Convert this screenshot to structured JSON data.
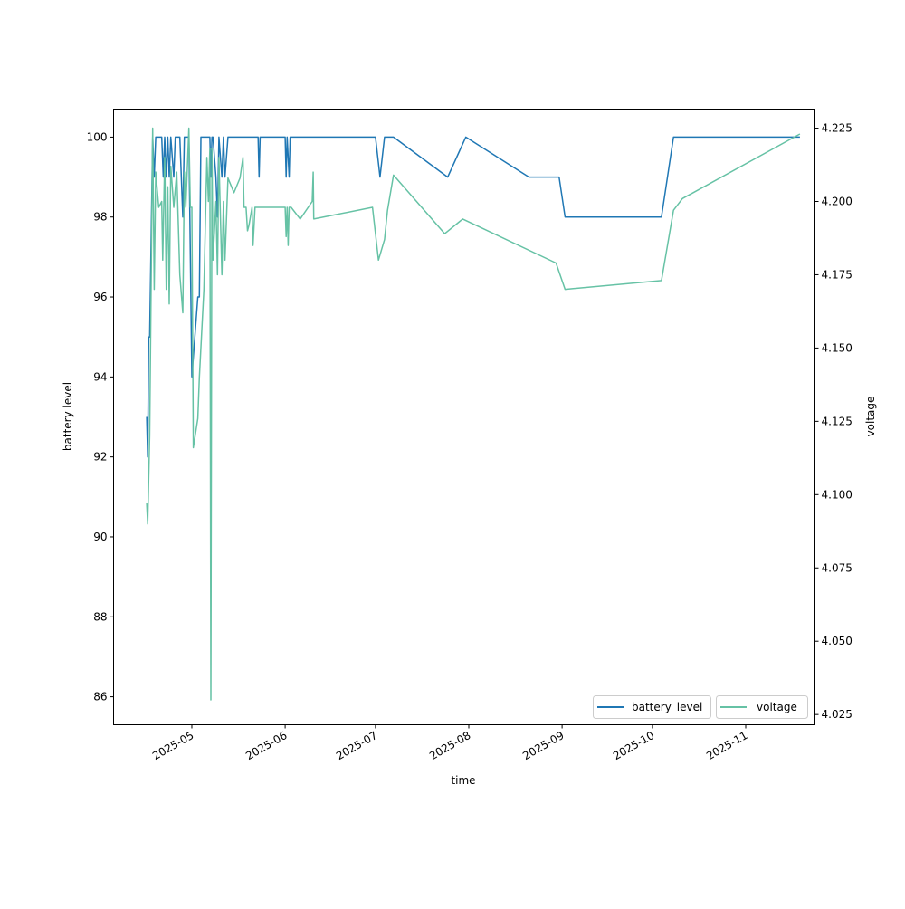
{
  "chart_data": {
    "type": "line",
    "xlabel": "time",
    "ylabel": "battery level",
    "ylabel_right": "voltage",
    "ylim": [
      85.3,
      100.7
    ],
    "ylim_right": [
      4.0215,
      4.2315
    ],
    "xlim": [
      "2025-04-05",
      "2025-11-24"
    ],
    "x_ticks": [
      "2025-05",
      "2025-06",
      "2025-07",
      "2025-08",
      "2025-09",
      "2025-10",
      "2025-11"
    ],
    "y_ticks": [
      "86",
      "88",
      "90",
      "92",
      "94",
      "96",
      "98",
      "100"
    ],
    "y_ticks_right": [
      "4.025",
      "4.050",
      "4.075",
      "4.100",
      "4.125",
      "4.150",
      "4.175",
      "4.200",
      "4.225"
    ],
    "legend": {
      "placement": "lower-right",
      "entries": [
        "battery_level",
        "voltage"
      ]
    },
    "colors": {
      "battery_level": "#1f77b4",
      "voltage": "#66c2a5"
    },
    "series": [
      {
        "name": "battery_level",
        "axis": "left",
        "points": [
          [
            "2025-04-16T00:00",
            93
          ],
          [
            "2025-04-16T08:00",
            92
          ],
          [
            "2025-04-16T16:00",
            95
          ],
          [
            "2025-04-17T00:00",
            95
          ],
          [
            "2025-04-18T00:00",
            100
          ],
          [
            "2025-04-18T12:00",
            99
          ],
          [
            "2025-04-19T00:00",
            100
          ],
          [
            "2025-04-21T00:00",
            100
          ],
          [
            "2025-04-21T12:00",
            99
          ],
          [
            "2025-04-22T00:00",
            100
          ],
          [
            "2025-04-22T12:00",
            99
          ],
          [
            "2025-04-23T00:00",
            100
          ],
          [
            "2025-04-23T12:00",
            99
          ],
          [
            "2025-04-24T00:00",
            100
          ],
          [
            "2025-04-25T00:00",
            99
          ],
          [
            "2025-04-25T12:00",
            100
          ],
          [
            "2025-04-27T00:00",
            100
          ],
          [
            "2025-04-28T00:00",
            98
          ],
          [
            "2025-04-28T12:00",
            100
          ],
          [
            "2025-04-30T00:00",
            100
          ],
          [
            "2025-05-01T00:00",
            94
          ],
          [
            "2025-05-03T00:00",
            96
          ],
          [
            "2025-05-03T12:00",
            96
          ],
          [
            "2025-05-04T00:00",
            100
          ],
          [
            "2025-05-07T00:00",
            100
          ],
          [
            "2025-05-07T08:00",
            99
          ],
          [
            "2025-05-07T16:00",
            100
          ],
          [
            "2025-05-08T00:00",
            100
          ],
          [
            "2025-05-09T00:00",
            99
          ],
          [
            "2025-05-09T12:00",
            98
          ],
          [
            "2025-05-10T00:00",
            100
          ],
          [
            "2025-05-11T00:00",
            99
          ],
          [
            "2025-05-11T12:00",
            100
          ],
          [
            "2025-05-12T00:00",
            99
          ],
          [
            "2025-05-13T00:00",
            100
          ],
          [
            "2025-05-23T00:00",
            100
          ],
          [
            "2025-05-23T08:00",
            99
          ],
          [
            "2025-05-23T16:00",
            100
          ],
          [
            "2025-06-01T00:00",
            100
          ],
          [
            "2025-06-01T08:00",
            99
          ],
          [
            "2025-06-01T16:00",
            100
          ],
          [
            "2025-06-02T08:00",
            99
          ],
          [
            "2025-06-02T16:00",
            100
          ],
          [
            "2025-07-01T00:00",
            100
          ],
          [
            "2025-07-02T12:00",
            99
          ],
          [
            "2025-07-04T00:00",
            100
          ],
          [
            "2025-07-07T00:00",
            100
          ],
          [
            "2025-07-25T00:00",
            99
          ],
          [
            "2025-07-31T00:00",
            100
          ],
          [
            "2025-08-21T00:00",
            99
          ],
          [
            "2025-08-31T00:00",
            99
          ],
          [
            "2025-09-02T00:00",
            98
          ],
          [
            "2025-10-04T00:00",
            98
          ],
          [
            "2025-10-08T00:00",
            100
          ],
          [
            "2025-11-19T00:00",
            100
          ]
        ]
      },
      {
        "name": "voltage",
        "axis": "right",
        "points": [
          [
            "2025-04-16T00:00",
            4.097
          ],
          [
            "2025-04-16T08:00",
            4.09
          ],
          [
            "2025-04-17T00:00",
            4.12
          ],
          [
            "2025-04-18T00:00",
            4.225
          ],
          [
            "2025-04-18T12:00",
            4.17
          ],
          [
            "2025-04-19T00:00",
            4.21
          ],
          [
            "2025-04-20T00:00",
            4.198
          ],
          [
            "2025-04-21T00:00",
            4.2
          ],
          [
            "2025-04-21T08:00",
            4.18
          ],
          [
            "2025-04-22T00:00",
            4.215
          ],
          [
            "2025-04-22T12:00",
            4.17
          ],
          [
            "2025-04-23T00:00",
            4.205
          ],
          [
            "2025-04-23T12:00",
            4.165
          ],
          [
            "2025-04-24T00:00",
            4.212
          ],
          [
            "2025-04-25T00:00",
            4.198
          ],
          [
            "2025-04-26T00:00",
            4.21
          ],
          [
            "2025-04-27T00:00",
            4.175
          ],
          [
            "2025-04-28T00:00",
            4.162
          ],
          [
            "2025-04-28T12:00",
            4.21
          ],
          [
            "2025-04-29T00:00",
            4.198
          ],
          [
            "2025-04-30T00:00",
            4.225
          ],
          [
            "2025-04-30T12:00",
            4.198
          ],
          [
            "2025-05-01T00:00",
            4.198
          ],
          [
            "2025-05-01T12:00",
            4.116
          ],
          [
            "2025-05-03T00:00",
            4.126
          ],
          [
            "2025-05-03T12:00",
            4.14
          ],
          [
            "2025-05-05T00:00",
            4.17
          ],
          [
            "2025-05-06T00:00",
            4.215
          ],
          [
            "2025-05-06T12:00",
            4.2
          ],
          [
            "2025-05-07T00:00",
            4.218
          ],
          [
            "2025-05-07T08:00",
            4.03
          ],
          [
            "2025-05-07T16:00",
            4.218
          ],
          [
            "2025-05-08T00:00",
            4.18
          ],
          [
            "2025-05-09T00:00",
            4.2
          ],
          [
            "2025-05-09T12:00",
            4.175
          ],
          [
            "2025-05-10T00:00",
            4.215
          ],
          [
            "2025-05-11T00:00",
            4.175
          ],
          [
            "2025-05-11T12:00",
            4.2
          ],
          [
            "2025-05-12T00:00",
            4.18
          ],
          [
            "2025-05-13T00:00",
            4.208
          ],
          [
            "2025-05-15T00:00",
            4.203
          ],
          [
            "2025-05-17T00:00",
            4.208
          ],
          [
            "2025-05-18T00:00",
            4.215
          ],
          [
            "2025-05-18T08:00",
            4.198
          ],
          [
            "2025-05-19T00:00",
            4.198
          ],
          [
            "2025-05-19T12:00",
            4.19
          ],
          [
            "2025-05-20T00:00",
            4.192
          ],
          [
            "2025-05-21T00:00",
            4.198
          ],
          [
            "2025-05-21T08:00",
            4.185
          ],
          [
            "2025-05-22T00:00",
            4.198
          ],
          [
            "2025-06-01T00:00",
            4.198
          ],
          [
            "2025-06-01T08:00",
            4.188
          ],
          [
            "2025-06-01T16:00",
            4.198
          ],
          [
            "2025-06-02T00:00",
            4.185
          ],
          [
            "2025-06-02T08:00",
            4.198
          ],
          [
            "2025-06-03T00:00",
            4.198
          ],
          [
            "2025-06-06T00:00",
            4.194
          ],
          [
            "2025-06-10T00:00",
            4.2
          ],
          [
            "2025-06-10T08:00",
            4.21
          ],
          [
            "2025-06-10T12:00",
            4.194
          ],
          [
            "2025-06-30T00:00",
            4.198
          ],
          [
            "2025-07-02T00:00",
            4.18
          ],
          [
            "2025-07-04T00:00",
            4.187
          ],
          [
            "2025-07-05T00:00",
            4.197
          ],
          [
            "2025-07-07T00:00",
            4.209
          ],
          [
            "2025-07-24T00:00",
            4.189
          ],
          [
            "2025-07-30T00:00",
            4.194
          ],
          [
            "2025-08-30T00:00",
            4.179
          ],
          [
            "2025-09-02T00:00",
            4.17
          ],
          [
            "2025-10-04T00:00",
            4.173
          ],
          [
            "2025-10-08T00:00",
            4.197
          ],
          [
            "2025-10-11T00:00",
            4.201
          ],
          [
            "2025-11-19T00:00",
            4.223
          ]
        ]
      }
    ]
  }
}
